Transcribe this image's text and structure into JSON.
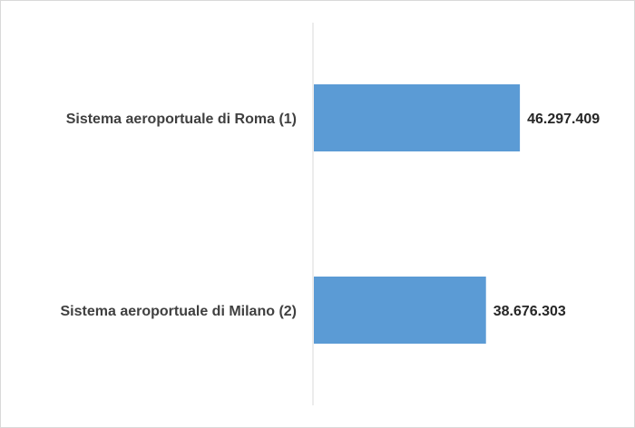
{
  "chart_data": {
    "type": "bar",
    "orientation": "horizontal",
    "title": "",
    "xlabel": "",
    "ylabel": "",
    "categories": [
      "Sistema aeroportuale di Roma (1)",
      "Sistema aeroportuale di Milano (2)"
    ],
    "values": [
      46297409,
      38676303
    ],
    "value_labels": [
      "46.297.409",
      "38.676.303"
    ],
    "xlim": [
      0,
      95000000
    ],
    "grid": false,
    "legend": "none",
    "bar_color": "#5B9BD5",
    "axis_color": "#d9d9d9"
  }
}
